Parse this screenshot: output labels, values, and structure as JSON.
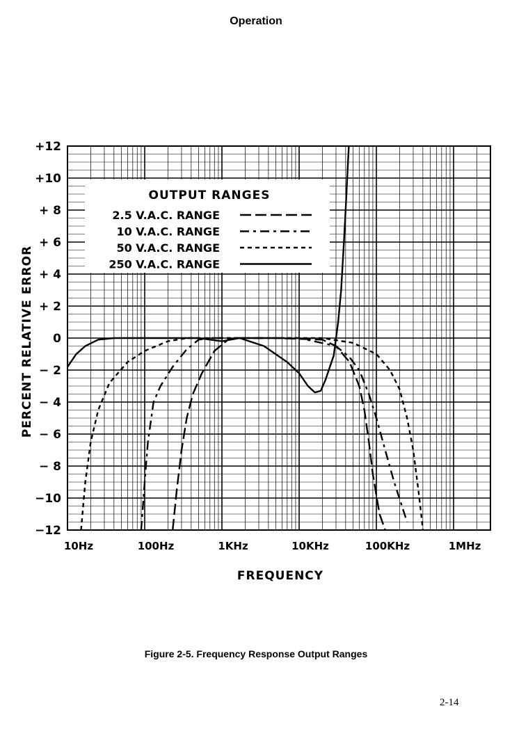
{
  "page": {
    "header": "Operation",
    "caption": "Figure 2-5. Frequency Response Output Ranges",
    "page_number": "2-14"
  },
  "chart_data": {
    "type": "line",
    "xlabel": "FREQUENCY",
    "ylabel": "PERCENT RELATIVE ERROR",
    "x_scale": "log",
    "xlim": [
      10,
      3000000
    ],
    "ylim": [
      -12,
      12
    ],
    "x_ticks": [
      {
        "value": 10,
        "label": "10Hz"
      },
      {
        "value": 100,
        "label": "100Hz"
      },
      {
        "value": 1000,
        "label": "1KHz"
      },
      {
        "value": 10000,
        "label": "10KHz"
      },
      {
        "value": 100000,
        "label": "100KHz"
      },
      {
        "value": 1000000,
        "label": "1MHz"
      }
    ],
    "y_ticks": [
      {
        "value": 12,
        "label": "+12"
      },
      {
        "value": 10,
        "label": "+10"
      },
      {
        "value": 8,
        "label": "+ 8"
      },
      {
        "value": 6,
        "label": "+ 6"
      },
      {
        "value": 4,
        "label": "+ 4"
      },
      {
        "value": 2,
        "label": "+ 2"
      },
      {
        "value": 0,
        "label": "0"
      },
      {
        "value": -2,
        "label": "− 2"
      },
      {
        "value": -4,
        "label": "− 4"
      },
      {
        "value": -6,
        "label": "− 6"
      },
      {
        "value": -8,
        "label": "− 8"
      },
      {
        "value": -10,
        "label": "−10"
      },
      {
        "value": -12,
        "label": "−12"
      }
    ],
    "grid": true,
    "legend_title": "OUTPUT RANGES",
    "legend_position": "top-left",
    "series": [
      {
        "name": "2.5  V.A.C. RANGE",
        "style": "long-dash",
        "points": [
          [
            230,
            -12
          ],
          [
            260,
            -9.5
          ],
          [
            300,
            -7
          ],
          [
            350,
            -5
          ],
          [
            420,
            -3.5
          ],
          [
            550,
            -2.2
          ],
          [
            800,
            -0.8
          ],
          [
            1200,
            -0.1
          ],
          [
            1500,
            0
          ],
          [
            5000,
            0
          ],
          [
            20000,
            -0.1
          ],
          [
            30000,
            -0.5
          ],
          [
            45000,
            -1.5
          ],
          [
            60000,
            -3
          ],
          [
            70000,
            -4.5
          ],
          [
            80000,
            -6.5
          ],
          [
            90000,
            -8.5
          ],
          [
            110000,
            -11
          ],
          [
            130000,
            -12
          ]
        ]
      },
      {
        "name": "10  V.A.C. RANGE",
        "style": "dash-dot",
        "points": [
          [
            90,
            -12
          ],
          [
            100,
            -9
          ],
          [
            110,
            -6.5
          ],
          [
            130,
            -4
          ],
          [
            160,
            -3
          ],
          [
            230,
            -1.8
          ],
          [
            350,
            -0.7
          ],
          [
            500,
            -0.1
          ],
          [
            700,
            0
          ],
          [
            10000,
            0
          ],
          [
            30000,
            -0.5
          ],
          [
            45000,
            -1.2
          ],
          [
            60000,
            -2
          ],
          [
            80000,
            -3.5
          ],
          [
            100000,
            -5
          ],
          [
            130000,
            -7
          ],
          [
            170000,
            -9
          ],
          [
            250000,
            -11.5
          ]
        ]
      },
      {
        "name": "50  V.A.C. RANGE",
        "style": "short-dash",
        "points": [
          [
            15,
            -12
          ],
          [
            17,
            -9
          ],
          [
            20,
            -6.5
          ],
          [
            25,
            -4.5
          ],
          [
            35,
            -2.8
          ],
          [
            60,
            -1.5
          ],
          [
            100,
            -0.8
          ],
          [
            200,
            -0.2
          ],
          [
            350,
            0
          ],
          [
            20000,
            0
          ],
          [
            50000,
            -0.3
          ],
          [
            100000,
            -1
          ],
          [
            150000,
            -2
          ],
          [
            200000,
            -3.2
          ],
          [
            250000,
            -5
          ],
          [
            300000,
            -7
          ],
          [
            350000,
            -9.5
          ],
          [
            380000,
            -11
          ],
          [
            400000,
            -12
          ]
        ]
      },
      {
        "name": "250  V.A.C. RANGE",
        "style": "solid",
        "points": [
          [
            10,
            -1.8
          ],
          [
            13,
            -1
          ],
          [
            17,
            -0.5
          ],
          [
            25,
            -0.1
          ],
          [
            40,
            0
          ],
          [
            500,
            0
          ],
          [
            1000,
            -0.2
          ],
          [
            1700,
            0
          ],
          [
            3500,
            -0.5
          ],
          [
            7000,
            -1.5
          ],
          [
            10000,
            -2.2
          ],
          [
            13000,
            -3
          ],
          [
            16000,
            -3.4
          ],
          [
            19000,
            -3.3
          ],
          [
            22000,
            -2.6
          ],
          [
            25000,
            -1.8
          ],
          [
            28000,
            -1.1
          ],
          [
            32000,
            1
          ],
          [
            35000,
            3
          ],
          [
            38000,
            6
          ],
          [
            41000,
            9
          ],
          [
            44000,
            12
          ]
        ]
      }
    ]
  }
}
